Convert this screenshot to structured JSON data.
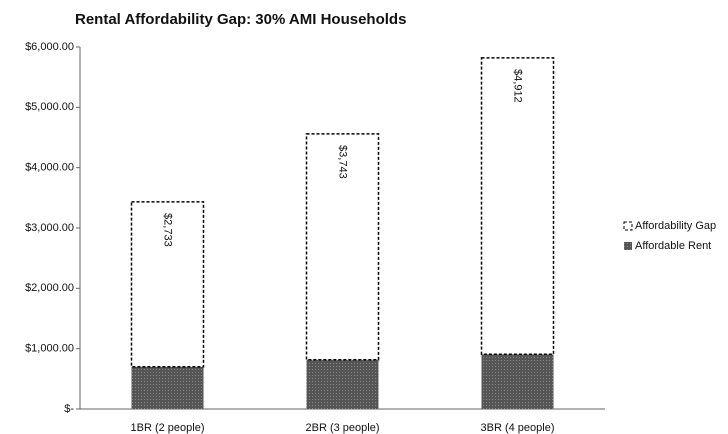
{
  "chart_data": {
    "type": "stacked_bar",
    "title": "Rental Affordability Gap: 30% AMI Households",
    "categories": [
      "1BR (2 people)",
      "2BR (3 people)",
      "3BR (4 people)"
    ],
    "series": [
      {
        "name": "Affordable Rent",
        "color": "#555555",
        "values": [
          700,
          817,
          908
        ]
      },
      {
        "name": "Affordability Gap",
        "color": "#ffffff",
        "values": [
          2733,
          3743,
          4912
        ],
        "value_labels": [
          "$2,733",
          "$3,743",
          "$4,912"
        ]
      }
    ],
    "ylim": [
      0,
      6000
    ],
    "yticks": [
      {
        "value": 0,
        "label": "$-"
      },
      {
        "value": 1000,
        "label": "$1,000.00"
      },
      {
        "value": 2000,
        "label": "$2,000.00"
      },
      {
        "value": 3000,
        "label": "$3,000.00"
      },
      {
        "value": 4000,
        "label": "$4,000.00"
      },
      {
        "value": 5000,
        "label": "$5,000.00"
      },
      {
        "value": 6000,
        "label": "$6,000.00"
      }
    ],
    "legend": "right"
  }
}
